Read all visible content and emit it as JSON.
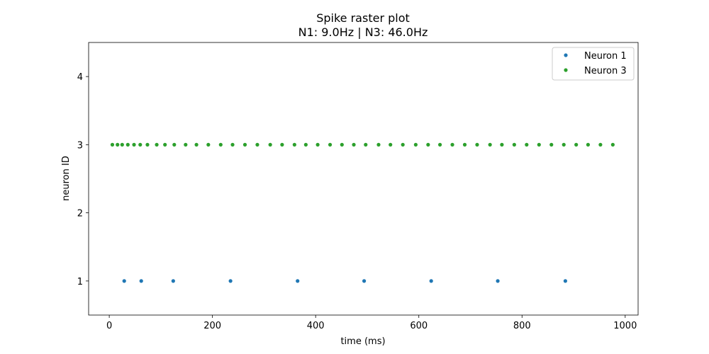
{
  "chart_data": {
    "type": "scatter",
    "title": "Spike raster plot",
    "subtitle": "N1: 9.0Hz | N3: 46.0Hz",
    "xlabel": "time (ms)",
    "ylabel": "neuron ID",
    "xlim": [
      -40,
      1025
    ],
    "ylim": [
      0.5,
      4.5
    ],
    "xticks": [
      0,
      200,
      400,
      600,
      800,
      1000
    ],
    "xtick_labels": [
      "0",
      "200",
      "400",
      "600",
      "800",
      "1000"
    ],
    "yticks": [
      1,
      2,
      3,
      4
    ],
    "ytick_labels": [
      "1",
      "2",
      "3",
      "4"
    ],
    "grid": false,
    "legend_position": "top-right",
    "series": [
      {
        "name": "Neuron 1",
        "color": "#1f77b4",
        "y": 1,
        "x": [
          29,
          62,
          124,
          235,
          365,
          494,
          624,
          753,
          884
        ]
      },
      {
        "name": "Neuron 3",
        "color": "#2ca02c",
        "y": 3,
        "x": [
          6,
          16,
          25,
          36,
          48,
          60,
          74,
          92,
          108,
          126,
          148,
          169,
          192,
          216,
          239,
          263,
          287,
          312,
          335,
          359,
          381,
          404,
          428,
          451,
          474,
          497,
          522,
          545,
          569,
          594,
          618,
          641,
          665,
          689,
          713,
          738,
          761,
          785,
          809,
          833,
          857,
          881,
          905,
          928,
          952,
          976
        ]
      }
    ]
  }
}
